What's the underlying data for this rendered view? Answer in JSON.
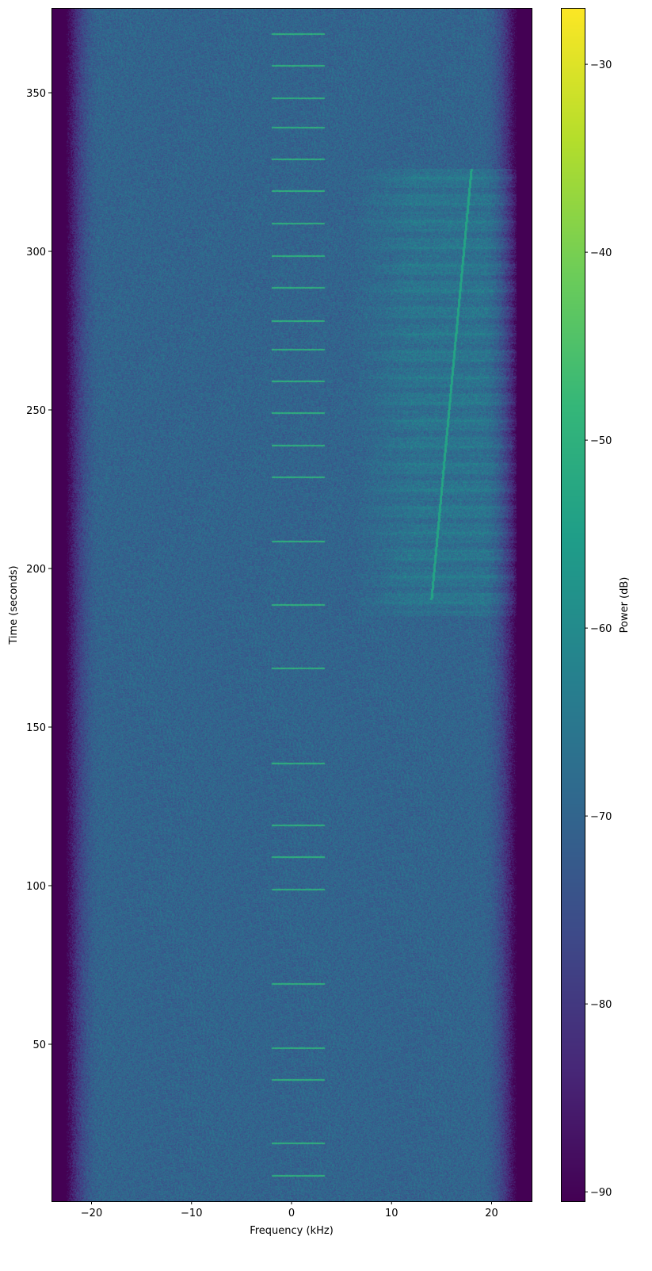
{
  "chart_data": {
    "type": "heatmap",
    "title": "",
    "xlabel": "Frequency (kHz)",
    "ylabel": "Time (seconds)",
    "xlim": [
      -24,
      24
    ],
    "ylim": [
      0.5,
      376.75
    ],
    "xticks": [
      -20,
      -10,
      0,
      10,
      20
    ],
    "xtick_labels": [
      "−20",
      "−10",
      "0",
      "10",
      "20"
    ],
    "yticks": [
      50,
      100,
      150,
      200,
      250,
      300,
      350
    ],
    "ytick_labels": [
      "50",
      "100",
      "150",
      "200",
      "250",
      "300",
      "350"
    ],
    "colorbar": {
      "label": "Power (dB)",
      "colormap": "viridis",
      "range": [
        -90.5,
        -27
      ],
      "ticks": [
        -30,
        -40,
        -50,
        -60,
        -70,
        -80,
        -90
      ],
      "tick_labels": [
        "−30",
        "−40",
        "−50",
        "−60",
        "−70",
        "−80",
        "−90"
      ]
    },
    "background_level_db": -70,
    "edge_rolloff_khz": [
      19,
      22.5
    ],
    "tone_bursts": {
      "freq_range_khz": [
        -2,
        3.3
      ],
      "level_db": -52,
      "times_s": [
        8.5,
        18.75,
        38.75,
        48.75,
        69,
        98.75,
        109,
        119,
        138.5,
        168.5,
        188.5,
        208.5,
        228.75,
        238.75,
        249,
        259,
        269,
        278,
        288.5,
        298.5,
        308.75,
        319,
        329,
        339,
        348.25,
        358.5,
        368.5
      ]
    },
    "broadband_region": {
      "freq_range_khz": [
        6,
        23
      ],
      "time_range_s": [
        185,
        326
      ],
      "level_db": -65
    },
    "chirp": {
      "start": [
        14,
        190
      ],
      "end": [
        18,
        326
      ],
      "level_db": -55
    },
    "grid": false
  }
}
